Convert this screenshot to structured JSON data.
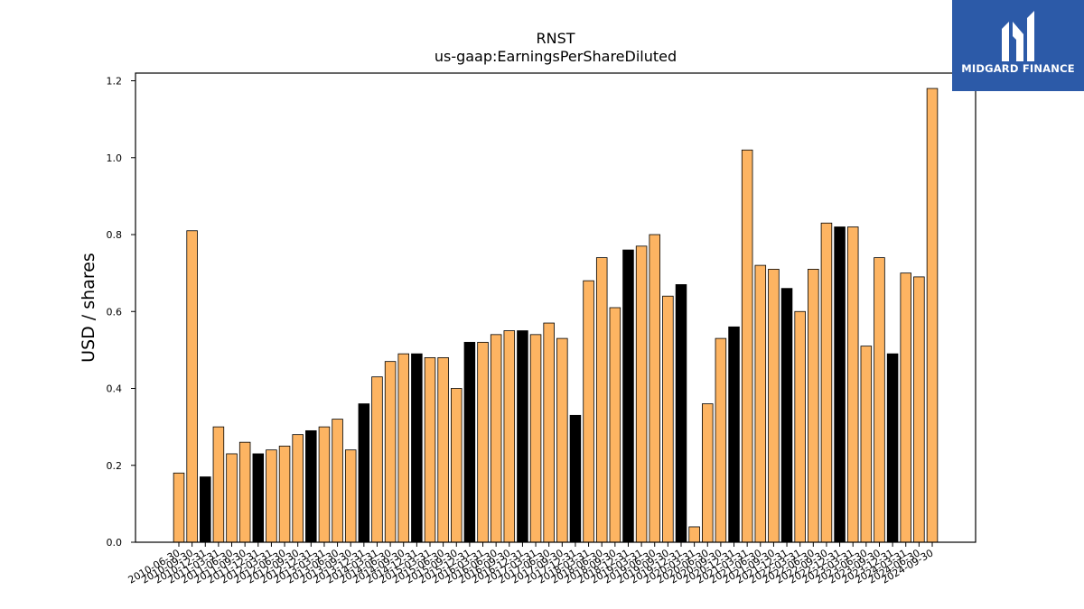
{
  "brand": {
    "name": "MIDGARD FINANCE",
    "color": "#2c5aa8"
  },
  "chart_data": {
    "type": "bar",
    "title": "RNST",
    "subtitle": "us-gaap:EarningsPerShareDiluted",
    "xlabel": "",
    "ylabel": "USD / shares",
    "ylim": [
      0,
      1.22
    ],
    "yticks": [
      0.0,
      0.2,
      0.4,
      0.6,
      0.8,
      1.0,
      1.2
    ],
    "colors": {
      "default": "#fdb462",
      "highlight": "#000000",
      "edge": "#000000"
    },
    "categories": [
      "2010-06-30",
      "2010-09-30",
      "2010-12-31",
      "2011-03-31",
      "2011-06-30",
      "2011-09-30",
      "2011-12-31",
      "2012-03-31",
      "2012-06-30",
      "2012-09-30",
      "2012-12-31",
      "2013-03-31",
      "2013-06-30",
      "2013-09-30",
      "2013-12-31",
      "2014-03-31",
      "2014-06-30",
      "2014-09-30",
      "2014-12-31",
      "2015-03-31",
      "2015-06-30",
      "2015-09-30",
      "2015-12-31",
      "2016-03-31",
      "2016-06-30",
      "2016-09-30",
      "2016-12-31",
      "2017-03-31",
      "2017-06-30",
      "2017-09-30",
      "2017-12-31",
      "2018-03-31",
      "2018-06-30",
      "2018-09-30",
      "2018-12-31",
      "2019-03-31",
      "2019-06-30",
      "2019-09-30",
      "2019-12-31",
      "2020-03-31",
      "2020-06-30",
      "2020-09-30",
      "2020-12-31",
      "2021-03-31",
      "2021-06-30",
      "2021-09-30",
      "2021-12-31",
      "2022-03-31",
      "2022-06-30",
      "2022-09-30",
      "2022-12-31",
      "2023-03-31",
      "2023-06-30",
      "2023-09-30",
      "2023-12-31",
      "2024-03-31",
      "2024-06-30",
      "2024-09-30"
    ],
    "values": [
      0.18,
      0.81,
      0.17,
      0.3,
      0.23,
      0.26,
      0.23,
      0.24,
      0.25,
      0.28,
      0.29,
      0.3,
      0.32,
      0.24,
      0.36,
      0.43,
      0.47,
      0.49,
      0.49,
      0.48,
      0.48,
      0.4,
      0.52,
      0.52,
      0.54,
      0.55,
      0.55,
      0.54,
      0.57,
      0.53,
      0.33,
      0.68,
      0.74,
      0.61,
      0.76,
      0.77,
      0.8,
      0.64,
      0.67,
      0.04,
      0.36,
      0.53,
      0.56,
      1.02,
      0.72,
      0.71,
      0.66,
      0.6,
      0.71,
      0.83,
      0.82,
      0.82,
      0.51,
      0.74,
      0.49,
      0.7,
      0.69,
      1.18
    ],
    "highlight": [
      false,
      false,
      true,
      false,
      false,
      false,
      true,
      false,
      false,
      false,
      true,
      false,
      false,
      false,
      true,
      false,
      false,
      false,
      true,
      false,
      false,
      false,
      true,
      false,
      false,
      false,
      true,
      false,
      false,
      false,
      true,
      false,
      false,
      false,
      true,
      false,
      false,
      false,
      true,
      false,
      false,
      false,
      true,
      false,
      false,
      false,
      true,
      false,
      false,
      false,
      true,
      false,
      false,
      false,
      true,
      false,
      false,
      false
    ]
  }
}
